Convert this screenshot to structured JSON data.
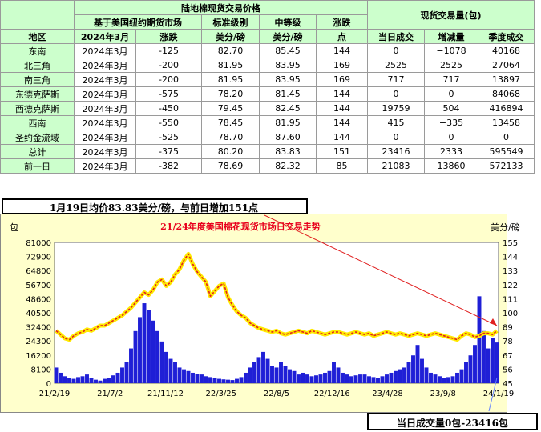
{
  "table": {
    "title_left": "陆地棉现货交易价格",
    "title_right": "现货交易量(包)",
    "sub_header_market": "基于美国纽约期货市场",
    "sub_header_standard": "标准级别",
    "sub_header_mid": "中等级",
    "sub_header_change": "涨跌",
    "col_region": "地区",
    "col_month": "2024年3月",
    "col_change": "涨跌",
    "col_std_unit": "美分/磅",
    "col_mid_unit": "美分/磅",
    "col_change_pts": "点",
    "col_today": "当日成交",
    "col_delta": "增减量",
    "col_season": "季度成交",
    "rows": [
      {
        "region": "东南",
        "month": "2024年3月",
        "basis": "-125",
        "std": "82.70",
        "mid": "85.45",
        "chg": "144",
        "today": "0",
        "delta": "−1078",
        "season": "40168",
        "delta_color": "blue"
      },
      {
        "region": "北三角",
        "month": "2024年3月",
        "basis": "-200",
        "std": "81.95",
        "mid": "83.95",
        "chg": "169",
        "today": "2525",
        "delta": "2525",
        "season": "27064",
        "delta_color": "red"
      },
      {
        "region": "南三角",
        "month": "2024年3月",
        "basis": "-200",
        "std": "81.95",
        "mid": "83.95",
        "chg": "169",
        "today": "717",
        "delta": "717",
        "season": "13897",
        "delta_color": "red"
      },
      {
        "region": "东德克萨斯",
        "month": "2024年3月",
        "basis": "-575",
        "std": "78.20",
        "mid": "81.45",
        "chg": "144",
        "today": "0",
        "delta": "0",
        "season": "84068",
        "delta_color": "red"
      },
      {
        "region": "西德克萨斯",
        "month": "2024年3月",
        "basis": "-450",
        "std": "79.45",
        "mid": "82.45",
        "chg": "144",
        "today": "19759",
        "delta": "504",
        "season": "416894",
        "delta_color": "red"
      },
      {
        "region": "西南",
        "month": "2024年3月",
        "basis": "-550",
        "std": "78.45",
        "mid": "81.95",
        "chg": "144",
        "today": "415",
        "delta": "−335",
        "season": "13458",
        "delta_color": "blue"
      },
      {
        "region": "圣约金流域",
        "month": "2024年3月",
        "basis": "-525",
        "std": "78.70",
        "mid": "87.60",
        "chg": "144",
        "today": "0",
        "delta": "0",
        "season": "0",
        "delta_color": "red"
      },
      {
        "region": "总计",
        "month": "2024年3月",
        "basis": "-375",
        "std": "80.20",
        "mid": "83.83",
        "chg": "151",
        "today": "23416",
        "delta": "2333",
        "season": "595549",
        "delta_color": "red"
      },
      {
        "region": "前一日",
        "month": "2024年3月",
        "basis": "-382",
        "std": "78.69",
        "mid": "82.32",
        "chg": "85",
        "today": "21083",
        "delta": "13860",
        "season": "572133",
        "delta_color": "red"
      }
    ]
  },
  "caption": "1月19日均价83.83美分/磅，与前日增加151点",
  "bottom_caption": "当日成交量0包-23416包",
  "chart_data": {
    "type": "bar+line",
    "title": "21/24年度美国棉花现货市场日交易走势",
    "ylabel_left": "包",
    "ylabel_right": "美分/磅",
    "y_left_ticks": [
      "81000",
      "72900",
      "64800",
      "56700",
      "48600",
      "40500",
      "32400",
      "24300",
      "16200",
      "8100",
      "0"
    ],
    "y_left_lim": [
      0,
      81000
    ],
    "y_right_ticks": [
      "155",
      "144",
      "133",
      "122",
      "111",
      "100",
      "89",
      "78",
      "67",
      "56",
      "45"
    ],
    "y_right_lim": [
      45,
      155
    ],
    "x_ticks": [
      "21/2/19",
      "21/7/2",
      "21/11/12",
      "22/3/25",
      "22/8/5",
      "22/12/16",
      "23/4/28",
      "23/9/8",
      "24/1/19"
    ],
    "price_series": {
      "name": "",
      "x": [
        0,
        3,
        6,
        9,
        12,
        15,
        18,
        21,
        24,
        27,
        30,
        33,
        36,
        39,
        42,
        45,
        48,
        51,
        54,
        57,
        60,
        63,
        66,
        69,
        72,
        75,
        78,
        81,
        84,
        87,
        90,
        93,
        96,
        99,
        102,
        105,
        108,
        111,
        114,
        117,
        120,
        123,
        126,
        129,
        132,
        135,
        138,
        141,
        144,
        147,
        150,
        153,
        156,
        159,
        162,
        165,
        168,
        171,
        174,
        177,
        180,
        183,
        186,
        189,
        192,
        195,
        198,
        201,
        204,
        207,
        210,
        213,
        216,
        219,
        222,
        225,
        228,
        231,
        234,
        237,
        240,
        243,
        246,
        249,
        252,
        255,
        258,
        261,
        264,
        267,
        270,
        273,
        276,
        279,
        282,
        285,
        288,
        291,
        294,
        297,
        300
      ],
      "values": [
        86,
        83,
        80,
        79,
        82,
        84,
        85,
        87,
        86,
        88,
        90,
        90,
        92,
        94,
        96,
        98,
        101,
        104,
        108,
        112,
        116,
        114,
        118,
        124,
        126,
        121,
        124,
        130,
        134,
        141,
        146,
        138,
        132,
        128,
        124,
        113,
        117,
        121,
        123,
        112,
        106,
        101,
        98,
        96,
        92,
        90,
        88,
        87,
        86,
        85,
        86,
        84,
        83,
        84,
        85,
        86,
        85,
        84,
        86,
        85,
        84,
        83,
        84,
        85,
        85,
        84,
        83,
        84,
        85,
        84,
        83,
        84,
        82,
        83,
        84,
        85,
        84,
        83,
        84,
        83,
        82,
        83,
        84,
        83,
        82,
        83,
        84,
        83,
        82,
        81,
        80,
        79,
        82,
        84,
        83,
        81,
        82,
        84,
        84,
        83,
        86
      ]
    },
    "volume_series": {
      "name": "",
      "x": [
        0,
        3,
        6,
        9,
        12,
        15,
        18,
        21,
        24,
        27,
        30,
        33,
        36,
        39,
        42,
        45,
        48,
        51,
        54,
        57,
        60,
        63,
        66,
        69,
        72,
        75,
        78,
        81,
        84,
        87,
        90,
        93,
        96,
        99,
        102,
        105,
        108,
        111,
        114,
        117,
        120,
        123,
        126,
        129,
        132,
        135,
        138,
        141,
        144,
        147,
        150,
        153,
        156,
        159,
        162,
        165,
        168,
        171,
        174,
        177,
        180,
        183,
        186,
        189,
        192,
        195,
        198,
        201,
        204,
        207,
        210,
        213,
        216,
        219,
        222,
        225,
        228,
        231,
        234,
        237,
        240,
        243,
        246,
        249,
        252,
        255,
        258,
        261,
        264,
        267,
        270,
        273,
        276,
        279,
        282,
        285,
        288,
        291,
        294,
        297,
        300
      ],
      "values": [
        9000,
        6000,
        4000,
        3000,
        2500,
        3500,
        4000,
        5000,
        3000,
        2000,
        1500,
        2500,
        3000,
        4500,
        6000,
        9000,
        12000,
        20000,
        30000,
        38000,
        46000,
        42000,
        36000,
        30000,
        24000,
        18000,
        14000,
        12000,
        9000,
        8000,
        7000,
        6000,
        5500,
        5000,
        4000,
        3500,
        3000,
        2500,
        2200,
        2000,
        1800,
        2500,
        3500,
        6000,
        9000,
        12000,
        15000,
        18000,
        14000,
        10000,
        9000,
        12000,
        10000,
        8000,
        7000,
        5000,
        6000,
        5000,
        4000,
        4500,
        5000,
        6000,
        7000,
        12000,
        9000,
        6000,
        5000,
        4000,
        4500,
        5000,
        5000,
        4000,
        3500,
        3000,
        4000,
        5000,
        6000,
        7000,
        8000,
        9000,
        12000,
        16000,
        22000,
        14000,
        9000,
        6000,
        5000,
        4000,
        3000,
        3500,
        4000,
        6000,
        8000,
        12000,
        16000,
        22000,
        50000,
        30000,
        20000,
        26000,
        23416
      ]
    }
  },
  "colors": {
    "header_bg": "#ccffcc",
    "chart_bg": "#ffffcc",
    "plot_bg": "#ffffff",
    "volume_bar": "#1f1fd6",
    "price_line": "#e02020",
    "price_glow": "#ffea00",
    "title_red": "#e8001c"
  }
}
